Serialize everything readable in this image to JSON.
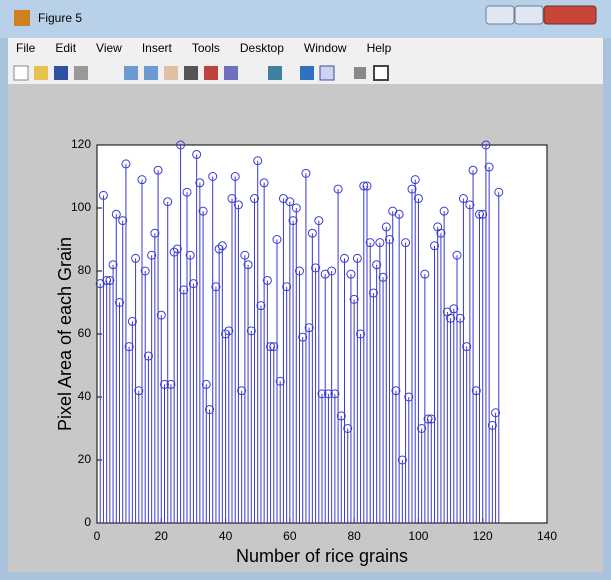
{
  "window": {
    "title": "Figure 5"
  },
  "menu": [
    "File",
    "Edit",
    "View",
    "Insert",
    "Tools",
    "Desktop",
    "Window",
    "Help"
  ],
  "chart_data": {
    "type": "stem",
    "xlabel": "Number of rice grains",
    "ylabel": "Pixel Area of each Grain",
    "color": "#3a3ad0",
    "x": [
      1,
      2,
      3,
      4,
      5,
      6,
      7,
      8,
      9,
      10,
      11,
      12,
      13,
      14,
      15,
      16,
      17,
      18,
      19,
      20,
      21,
      22,
      23,
      24,
      25,
      26,
      27,
      28,
      29,
      30,
      31,
      32,
      33,
      34,
      35,
      36,
      37,
      38,
      39,
      40,
      41,
      42,
      43,
      44,
      45,
      46,
      47,
      48,
      49,
      50,
      51,
      52,
      53,
      54,
      55,
      56,
      57,
      58,
      59,
      60,
      61,
      62,
      63,
      64,
      65,
      66,
      67,
      68,
      69,
      70,
      71,
      72,
      73,
      74,
      75,
      76,
      77,
      78,
      79,
      80,
      81,
      82,
      83,
      84,
      85,
      86,
      87,
      88,
      89,
      90,
      91,
      92,
      93,
      94,
      95,
      96,
      97,
      98,
      99,
      100,
      101,
      102,
      103,
      104,
      105,
      106,
      107,
      108,
      109,
      110,
      111,
      112,
      113,
      114,
      115,
      116,
      117,
      118,
      119,
      120,
      121,
      122,
      123,
      124,
      125
    ],
    "values": [
      76,
      104,
      77,
      77,
      82,
      98,
      70,
      96,
      114,
      56,
      64,
      84,
      42,
      109,
      80,
      53,
      85,
      92,
      112,
      66,
      44,
      102,
      44,
      86,
      87,
      120,
      74,
      105,
      85,
      76,
      117,
      108,
      99,
      44,
      36,
      110,
      75,
      87,
      88,
      60,
      61,
      103,
      110,
      101,
      42,
      85,
      82,
      61,
      103,
      115,
      69,
      108,
      77,
      56,
      56,
      90,
      45,
      103,
      75,
      102,
      96,
      100,
      80,
      59,
      111,
      62,
      92,
      81,
      96,
      41,
      79,
      41,
      80,
      41,
      106,
      34,
      84,
      30,
      79,
      71,
      84,
      60,
      107,
      107,
      89,
      73,
      82,
      89,
      78,
      94,
      90,
      99,
      42,
      98,
      20,
      89,
      40,
      106,
      109,
      103,
      30,
      79,
      33,
      33,
      88,
      94,
      92,
      99,
      67,
      65,
      68,
      85,
      65,
      103,
      56,
      101,
      112,
      42,
      98,
      98,
      120,
      113,
      31,
      35,
      105
    ],
    "xlim": [
      0,
      140
    ],
    "xticks": [
      0,
      20,
      40,
      60,
      80,
      100,
      120,
      140
    ],
    "ylim": [
      0,
      120
    ],
    "yticks": [
      0,
      20,
      40,
      60,
      80,
      100,
      120
    ]
  }
}
